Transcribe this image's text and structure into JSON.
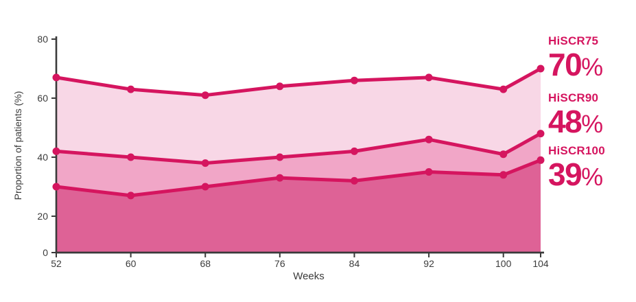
{
  "chart_data": {
    "type": "area",
    "title": "",
    "x": [
      52,
      60,
      68,
      76,
      84,
      92,
      100,
      104
    ],
    "xlabel": "Weeks",
    "ylabel": "Proportion of patients (%)",
    "ylim": [
      0,
      80
    ],
    "y_ticks": [
      0,
      20,
      40,
      60,
      80
    ],
    "x_ticks": [
      52,
      60,
      68,
      76,
      84,
      92,
      100,
      104
    ],
    "grid": false,
    "legend_position": "right-endpoint-labels",
    "line_color": "#d5155f",
    "axis_color": "#3a3a3a",
    "tick_text_color": "#3b3b3b",
    "series": [
      {
        "name": "HiSCR75",
        "values": [
          67,
          63,
          61,
          64,
          66,
          67,
          63,
          70
        ],
        "final_label": "70",
        "unit": "%",
        "fill": "#f8d7e6"
      },
      {
        "name": "HiSCR90",
        "values": [
          42,
          40,
          38,
          40,
          42,
          46,
          41,
          48
        ],
        "final_label": "48",
        "unit": "%",
        "fill": "#f1a6c7"
      },
      {
        "name": "HiSCR100",
        "values": [
          30,
          27,
          30,
          33,
          32,
          35,
          34,
          39
        ],
        "final_label": "39",
        "unit": "%",
        "fill": "#de6296"
      }
    ]
  }
}
